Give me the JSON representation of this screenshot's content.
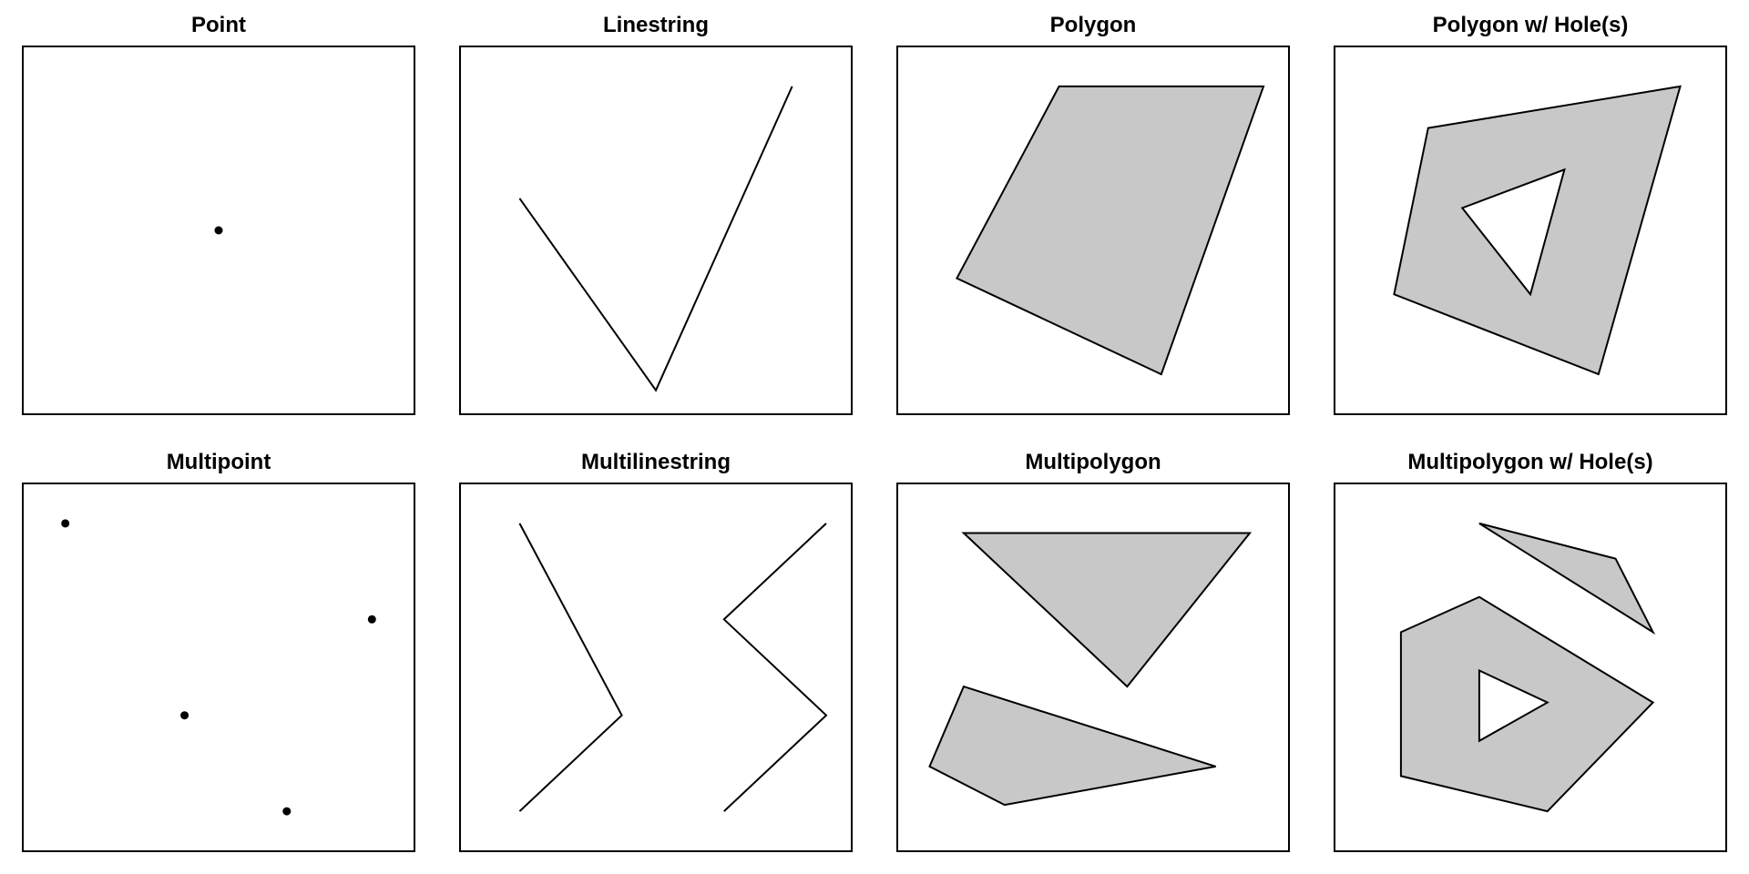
{
  "colors": {
    "stroke": "#000000",
    "fill": "#c8c8c8",
    "background": "#ffffff"
  },
  "panels": [
    {
      "id": "point",
      "title": "Point",
      "shapes": [
        {
          "kind": "point",
          "coords": [
            [
              5,
              5
            ]
          ]
        }
      ]
    },
    {
      "id": "linestring",
      "title": "Linestring",
      "shapes": [
        {
          "kind": "line",
          "coords": [
            [
              1,
              6
            ],
            [
              5,
              0
            ],
            [
              9,
              9.5
            ]
          ]
        }
      ]
    },
    {
      "id": "polygon",
      "title": "Polygon",
      "shapes": [
        {
          "kind": "polygon",
          "rings": [
            [
              [
                4,
                9.5
              ],
              [
                1,
                3.5
              ],
              [
                7,
                0.5
              ],
              [
                10,
                9.5
              ],
              [
                4,
                9.5
              ]
            ]
          ]
        }
      ]
    },
    {
      "id": "polygon-with-holes",
      "title": "Polygon w/ Hole(s)",
      "shapes": [
        {
          "kind": "polygon",
          "rings": [
            [
              [
                2,
                8.2
              ],
              [
                1,
                3
              ],
              [
                7,
                0.5
              ],
              [
                9.4,
                9.5
              ],
              [
                2,
                8.2
              ]
            ],
            [
              [
                3,
                5.7
              ],
              [
                5,
                3
              ],
              [
                6,
                6.9
              ],
              [
                3,
                5.7
              ]
            ]
          ]
        }
      ]
    },
    {
      "id": "multipoint",
      "title": "Multipoint",
      "shapes": [
        {
          "kind": "point",
          "coords": [
            [
              0.5,
              9.5
            ]
          ]
        },
        {
          "kind": "point",
          "coords": [
            [
              7,
              0.5
            ]
          ]
        },
        {
          "kind": "point",
          "coords": [
            [
              4,
              3.5
            ]
          ]
        },
        {
          "kind": "point",
          "coords": [
            [
              9.5,
              6.5
            ]
          ]
        }
      ]
    },
    {
      "id": "multilinestring",
      "title": "Multilinestring",
      "shapes": [
        {
          "kind": "line",
          "coords": [
            [
              1,
              9.5
            ],
            [
              4,
              3.5
            ],
            [
              1,
              0.5
            ]
          ]
        },
        {
          "kind": "line",
          "coords": [
            [
              7,
              0.5
            ],
            [
              10,
              3.5
            ],
            [
              7,
              6.5
            ],
            [
              10,
              9.5
            ]
          ]
        }
      ]
    },
    {
      "id": "multipolygon",
      "title": "Multipolygon",
      "shapes": [
        {
          "kind": "polygon",
          "rings": [
            [
              [
                1.2,
                9.2
              ],
              [
                6,
                4.4
              ],
              [
                9.6,
                9.2
              ],
              [
                1.2,
                9.2
              ]
            ]
          ]
        },
        {
          "kind": "polygon",
          "rings": [
            [
              [
                1.2,
                4.4
              ],
              [
                0.2,
                1.9
              ],
              [
                2.4,
                0.7
              ],
              [
                8.6,
                1.9
              ],
              [
                1.2,
                4.4
              ]
            ]
          ]
        }
      ]
    },
    {
      "id": "multipolygon-with-holes",
      "title": "Multipolygon w/ Hole(s)",
      "shapes": [
        {
          "kind": "polygon",
          "rings": [
            [
              [
                3.5,
                9.5
              ],
              [
                7.5,
                8.4
              ],
              [
                8.6,
                6.1
              ],
              [
                3.5,
                9.5
              ]
            ]
          ]
        },
        {
          "kind": "polygon",
          "rings": [
            [
              [
                1.2,
                6.1
              ],
              [
                3.5,
                7.2
              ],
              [
                8.6,
                3.9
              ],
              [
                5.5,
                0.5
              ],
              [
                1.2,
                1.6
              ],
              [
                1.2,
                6.1
              ]
            ],
            [
              [
                3.5,
                4.9
              ],
              [
                5.5,
                3.9
              ],
              [
                3.5,
                2.7
              ],
              [
                3.5,
                4.9
              ]
            ]
          ]
        }
      ]
    }
  ]
}
